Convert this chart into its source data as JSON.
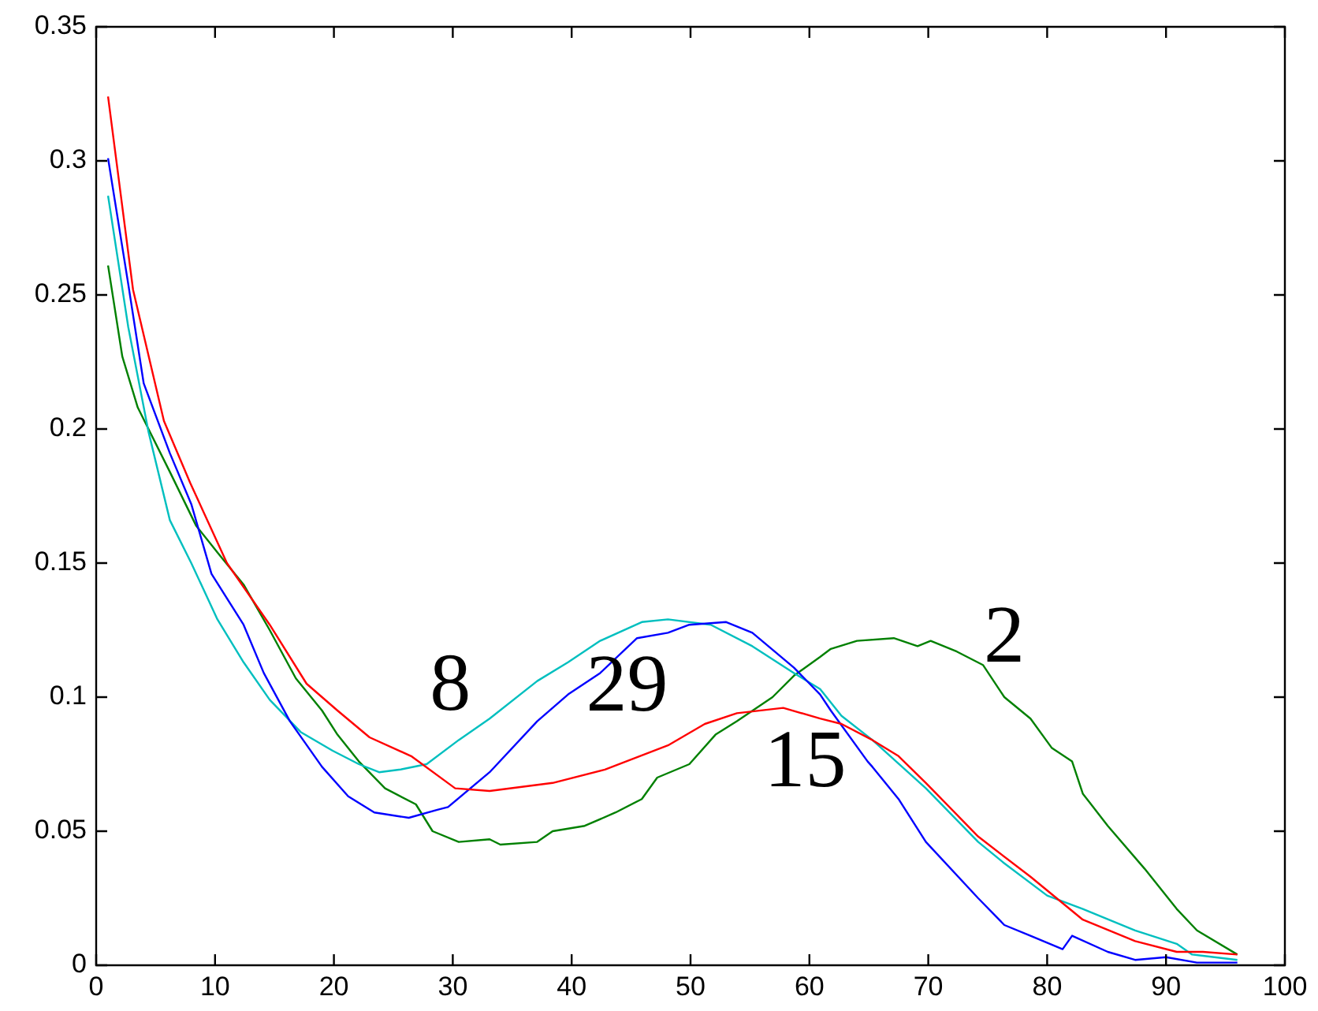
{
  "chart_data": {
    "type": "line",
    "xlim": [
      0,
      100
    ],
    "ylim": [
      0,
      0.35
    ],
    "xticks": [
      0,
      10,
      20,
      30,
      40,
      50,
      60,
      70,
      80,
      90,
      100
    ],
    "yticks": [
      0,
      0.05,
      0.1,
      0.15,
      0.2,
      0.25,
      0.3,
      0.35
    ],
    "grid": false,
    "legend": false,
    "marker": "none",
    "line_style": "solid",
    "series": [
      {
        "name": "15",
        "color": "#ff0000",
        "x": [
          1,
          3.1,
          5.7,
          7.9,
          11,
          14.6,
          17.7,
          20.3,
          23,
          26.5,
          30.2,
          33.1,
          38.4,
          42.8,
          48.1,
          51.2,
          53.9,
          57.8,
          60.9,
          62.7,
          65.3,
          67.5,
          69.8,
          74.2,
          78.6,
          83,
          87.4,
          90.9,
          93.1,
          96
        ],
        "values": [
          0.324,
          0.252,
          0.203,
          0.18,
          0.15,
          0.127,
          0.105,
          0.095,
          0.085,
          0.078,
          0.066,
          0.065,
          0.068,
          0.073,
          0.082,
          0.09,
          0.094,
          0.096,
          0.092,
          0.09,
          0.084,
          0.078,
          0.068,
          0.048,
          0.033,
          0.017,
          0.009,
          0.005,
          0.005,
          0.004
        ]
      },
      {
        "name": "29",
        "color": "#0000ff",
        "x": [
          1,
          2.7,
          4,
          6.2,
          8,
          9.7,
          12.4,
          14.1,
          16.3,
          19,
          21.2,
          23.4,
          26.3,
          28.7,
          29.6,
          33.1,
          37.1,
          39.7,
          42.4,
          45.5,
          48.1,
          49.9,
          53,
          55.2,
          58.7,
          60.9,
          61.8,
          64.9,
          65.3,
          67.5,
          69.8,
          74.2,
          76.4,
          78.6,
          81.3,
          82.1,
          85.1,
          87.4,
          90,
          92.6,
          96
        ],
        "values": [
          0.301,
          0.254,
          0.217,
          0.191,
          0.172,
          0.146,
          0.127,
          0.109,
          0.091,
          0.074,
          0.063,
          0.057,
          0.055,
          0.058,
          0.059,
          0.072,
          0.091,
          0.101,
          0.109,
          0.122,
          0.124,
          0.127,
          0.128,
          0.124,
          0.111,
          0.101,
          0.095,
          0.076,
          0.074,
          0.062,
          0.046,
          0.025,
          0.015,
          0.011,
          0.006,
          0.011,
          0.005,
          0.002,
          0.003,
          0.001,
          0.001
        ]
      },
      {
        "name": "8",
        "color": "#00bfbf",
        "x": [
          1,
          2.7,
          4.4,
          6.2,
          8,
          10.2,
          12.4,
          14.6,
          17.2,
          19.9,
          22.1,
          23.8,
          25.6,
          27.8,
          30.5,
          33.1,
          37.1,
          39.7,
          42.4,
          45.9,
          48.1,
          51.7,
          55.2,
          58.7,
          60.9,
          62.7,
          65.3,
          69.8,
          74.2,
          76.4,
          80,
          83,
          87.4,
          90.9,
          92.2,
          96
        ],
        "values": [
          0.287,
          0.238,
          0.199,
          0.166,
          0.15,
          0.129,
          0.113,
          0.099,
          0.087,
          0.08,
          0.075,
          0.072,
          0.073,
          0.075,
          0.084,
          0.092,
          0.106,
          0.113,
          0.121,
          0.128,
          0.129,
          0.127,
          0.119,
          0.109,
          0.103,
          0.093,
          0.084,
          0.066,
          0.046,
          0.038,
          0.026,
          0.021,
          0.013,
          0.008,
          0.004,
          0.002
        ]
      },
      {
        "name": "2",
        "color": "#008000",
        "x": [
          1,
          2.2,
          3.5,
          6.2,
          8.4,
          10.2,
          12.4,
          14.6,
          16.8,
          19,
          20.3,
          22.1,
          24.3,
          26.9,
          28.3,
          30.5,
          33.1,
          34,
          37.1,
          38.4,
          41.1,
          43.7,
          45.9,
          47.2,
          49.9,
          52.1,
          53.9,
          56.9,
          58.7,
          60.9,
          61.8,
          64,
          67.1,
          69.1,
          70.2,
          72.4,
          74.6,
          76.4,
          78.6,
          80.4,
          82.1,
          83,
          85.1,
          88.2,
          90.9,
          92.6,
          96
        ],
        "values": [
          0.261,
          0.227,
          0.208,
          0.184,
          0.164,
          0.154,
          0.142,
          0.125,
          0.107,
          0.095,
          0.086,
          0.076,
          0.066,
          0.06,
          0.05,
          0.046,
          0.047,
          0.045,
          0.046,
          0.05,
          0.052,
          0.057,
          0.062,
          0.07,
          0.075,
          0.086,
          0.091,
          0.1,
          0.108,
          0.115,
          0.118,
          0.121,
          0.122,
          0.119,
          0.121,
          0.117,
          0.112,
          0.1,
          0.092,
          0.081,
          0.076,
          0.064,
          0.052,
          0.036,
          0.021,
          0.013,
          0.004
        ]
      }
    ]
  }
}
